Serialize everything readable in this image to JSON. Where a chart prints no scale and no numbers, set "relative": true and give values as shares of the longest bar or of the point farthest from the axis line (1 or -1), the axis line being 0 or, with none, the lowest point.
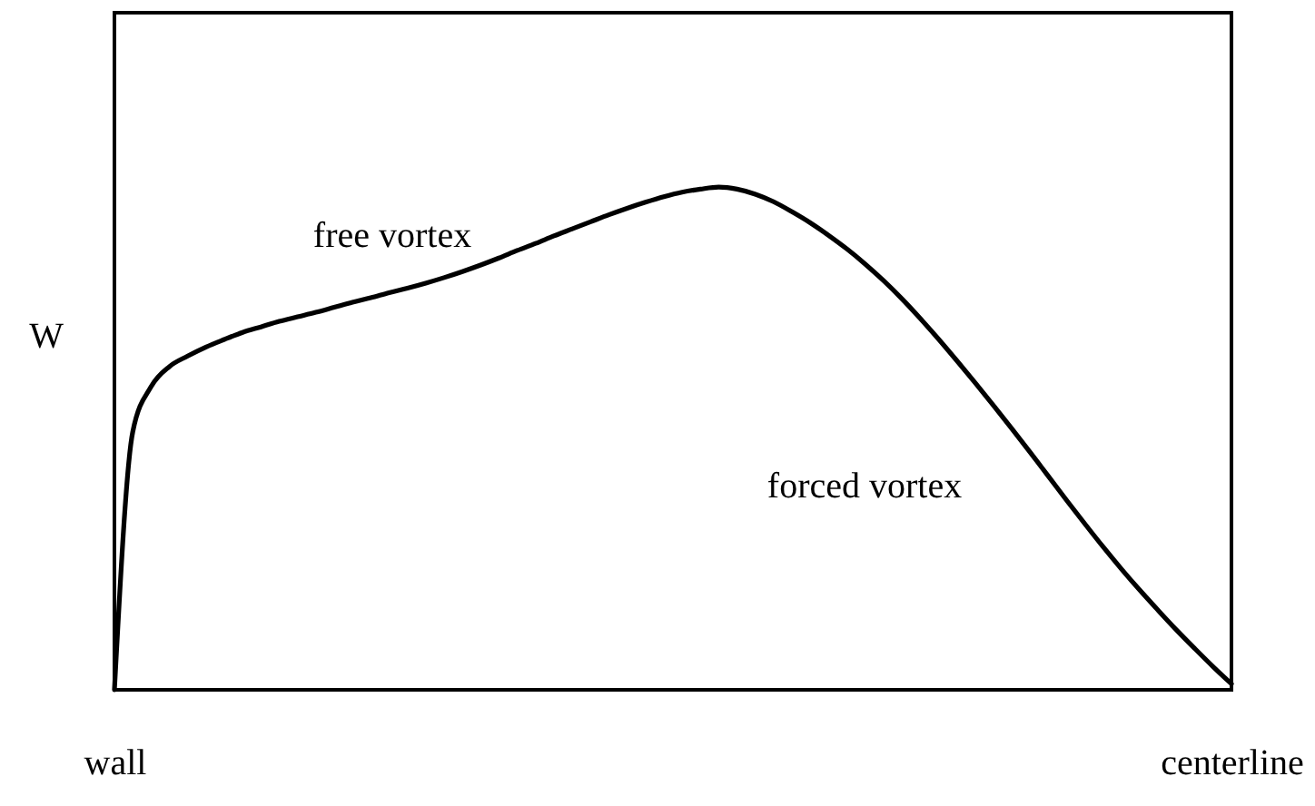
{
  "chart_data": {
    "type": "line",
    "relative": true,
    "ylabel": "W",
    "categories": [
      "wall",
      null,
      null,
      null,
      null,
      null,
      null,
      null,
      null,
      null,
      null,
      null,
      null,
      null,
      null,
      null,
      null,
      null,
      null,
      null,
      null,
      null,
      null,
      null,
      null,
      null,
      null,
      null,
      null,
      null,
      null,
      null,
      null,
      null,
      null,
      null,
      null,
      null,
      null,
      null,
      null,
      null,
      null,
      null,
      null,
      null,
      null,
      null,
      null,
      null,
      null,
      null,
      null,
      null,
      null,
      null,
      null,
      null,
      null,
      null,
      null,
      "centerline"
    ],
    "values": [
      0,
      0.513,
      0.603,
      0.643,
      0.664,
      0.682,
      0.697,
      0.711,
      0.722,
      0.733,
      0.742,
      0.751,
      0.761,
      0.771,
      0.78,
      0.79,
      0.799,
      0.809,
      0.82,
      0.832,
      0.845,
      0.859,
      0.874,
      0.888,
      0.903,
      0.917,
      0.931,
      0.945,
      0.958,
      0.97,
      0.981,
      0.99,
      0.996,
      1,
      0.996,
      0.986,
      0.971,
      0.951,
      0.929,
      0.904,
      0.877,
      0.847,
      0.814,
      0.778,
      0.739,
      0.698,
      0.655,
      0.611,
      0.566,
      0.52,
      0.473,
      0.425,
      0.377,
      0.33,
      0.284,
      0.24,
      0.198,
      0.158,
      0.119,
      0.082,
      0.046,
      0.012
    ],
    "color": "#000000",
    "line_style": "solid",
    "annotations": [
      "free vortex",
      "forced vortex"
    ]
  }
}
